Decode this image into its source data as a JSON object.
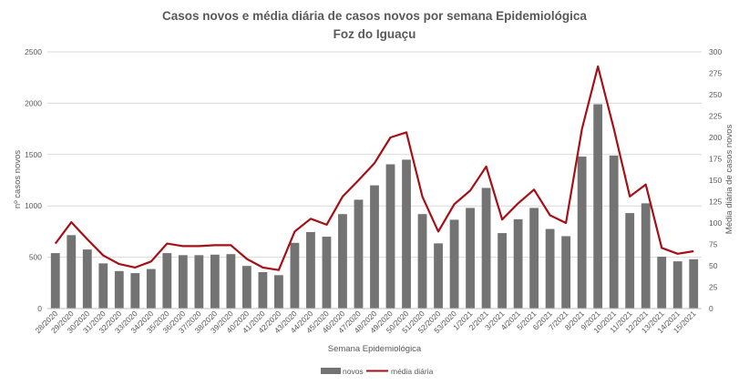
{
  "chart_data": {
    "type": "bar",
    "title": "Casos novos  e média diária  de casos novos por semana Epidemiológica",
    "subtitle": "Foz do Iguaçu",
    "xlabel": "Semana Epidemiológica",
    "ylabel": "nº casos novos",
    "y2label": "Média diária de casos novos",
    "ylim": [
      0,
      2500
    ],
    "y2lim": [
      0,
      300
    ],
    "yticks": [
      "0",
      "500",
      "1000",
      "1500",
      "2000",
      "2500"
    ],
    "y2ticks": [
      "0",
      "25",
      "50",
      "75",
      "100",
      "125",
      "150",
      "175",
      "200",
      "225",
      "250",
      "275",
      "300"
    ],
    "grid": true,
    "legend_position": "bottom",
    "categories": [
      "28/2020",
      "29/2020",
      "30/2020",
      "31/2020",
      "32/2020",
      "33/2020",
      "34/2020",
      "35/2020",
      "36/2020",
      "37/2020",
      "38/2020",
      "39/2020",
      "40/2020",
      "41/2020",
      "42/2020",
      "43/2020",
      "44/2020",
      "45/2020",
      "46/2020",
      "47/2020",
      "48/2020",
      "49/2020",
      "50/2020",
      "51/2020",
      "52/2020",
      "53/2020",
      "1/2021",
      "2/2021",
      "3/2021",
      "4/2021",
      "5/2021",
      "6/2021",
      "7/2021",
      "8/2021",
      "9/2021",
      "10/2021",
      "11/2021",
      "12/2021",
      "13/2021",
      "14/2021",
      "15/2021"
    ],
    "series": [
      {
        "name": "novos",
        "type": "bar",
        "axis": "left",
        "color": "#737373",
        "values": [
          540,
          715,
          575,
          440,
          365,
          345,
          385,
          540,
          520,
          520,
          525,
          530,
          415,
          355,
          325,
          640,
          745,
          700,
          920,
          1060,
          1200,
          1405,
          1450,
          920,
          635,
          865,
          980,
          1175,
          735,
          870,
          980,
          775,
          705,
          1480,
          1990,
          1490,
          930,
          1025,
          505,
          460,
          480
        ]
      },
      {
        "name": "média diária",
        "type": "line",
        "axis": "right",
        "color": "#a50f15",
        "values": [
          76,
          101,
          81,
          62,
          52,
          48,
          55,
          76,
          73,
          73,
          74,
          74,
          58,
          48,
          45,
          90,
          105,
          98,
          131,
          150,
          170,
          200,
          206,
          131,
          90,
          122,
          138,
          166,
          104,
          123,
          139,
          109,
          100,
          210,
          283,
          210,
          131,
          145,
          71,
          64,
          67
        ]
      }
    ]
  }
}
